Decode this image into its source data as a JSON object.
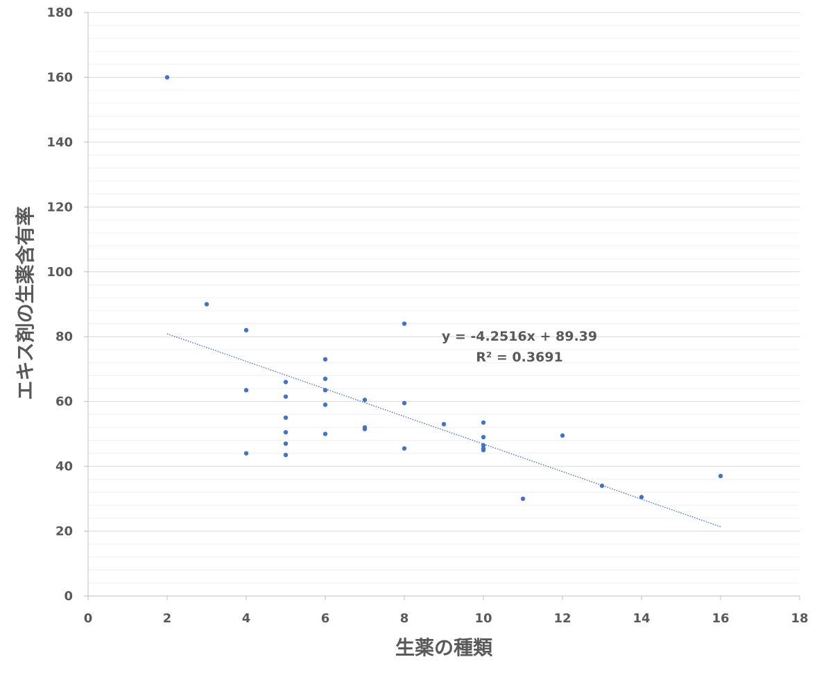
{
  "chart_data": {
    "type": "scatter",
    "title": "",
    "xlabel": "生薬の種類",
    "ylabel": "エキス剤の生薬含有率",
    "xlim": [
      0,
      18
    ],
    "ylim": [
      0,
      180
    ],
    "x_ticks": [
      0,
      2,
      4,
      6,
      8,
      10,
      12,
      14,
      16,
      18
    ],
    "y_ticks": [
      0,
      20,
      40,
      60,
      80,
      100,
      120,
      140,
      160,
      180
    ],
    "major_grid": true,
    "minor_grid": true,
    "legend": "none",
    "marker_color": "#4472C4",
    "series": [
      {
        "points": [
          {
            "x": 2,
            "y": 160
          },
          {
            "x": 3,
            "y": 90
          },
          {
            "x": 4,
            "y": 82
          },
          {
            "x": 4,
            "y": 63.5
          },
          {
            "x": 4,
            "y": 44
          },
          {
            "x": 5,
            "y": 66
          },
          {
            "x": 5,
            "y": 61.5
          },
          {
            "x": 5,
            "y": 55
          },
          {
            "x": 5,
            "y": 50.5
          },
          {
            "x": 5,
            "y": 47
          },
          {
            "x": 5,
            "y": 43.5
          },
          {
            "x": 6,
            "y": 73
          },
          {
            "x": 6,
            "y": 67
          },
          {
            "x": 6,
            "y": 63.5
          },
          {
            "x": 6,
            "y": 59
          },
          {
            "x": 6,
            "y": 50
          },
          {
            "x": 7,
            "y": 60.5
          },
          {
            "x": 7,
            "y": 52
          },
          {
            "x": 7,
            "y": 51.5
          },
          {
            "x": 8,
            "y": 84
          },
          {
            "x": 8,
            "y": 59.5
          },
          {
            "x": 8,
            "y": 45.5
          },
          {
            "x": 9,
            "y": 53
          },
          {
            "x": 10,
            "y": 53.5
          },
          {
            "x": 10,
            "y": 49
          },
          {
            "x": 10,
            "y": 46.5
          },
          {
            "x": 10,
            "y": 45.5
          },
          {
            "x": 10,
            "y": 45
          },
          {
            "x": 11,
            "y": 30
          },
          {
            "x": 12,
            "y": 49.5
          },
          {
            "x": 13,
            "y": 34
          },
          {
            "x": 14,
            "y": 30.5
          },
          {
            "x": 16,
            "y": 37
          }
        ]
      }
    ],
    "trendline": {
      "type": "linear",
      "slope": -4.2516,
      "intercept": 89.39,
      "x_range": [
        2,
        16
      ],
      "equation": "y = -4.2516x + 89.39",
      "r_squared": "R² = 0.3691",
      "color": "#4472C4",
      "style": "dotted"
    }
  }
}
